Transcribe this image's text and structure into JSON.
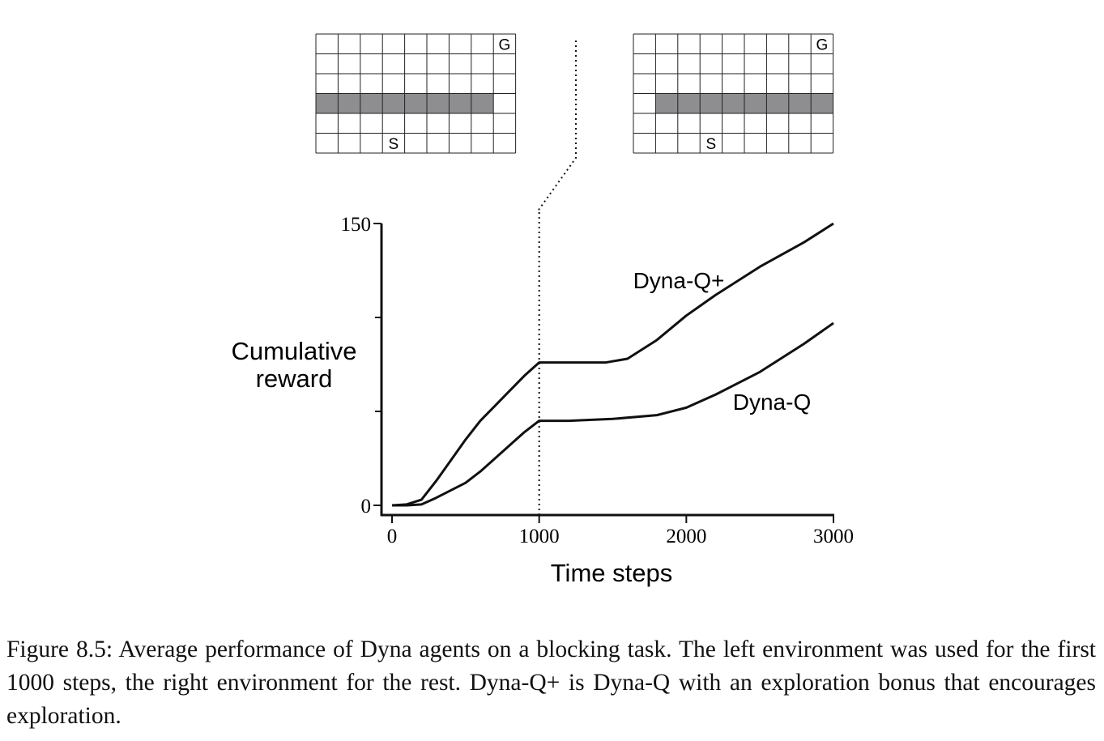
{
  "chart_data": {
    "type": "line",
    "x_label": "Time steps",
    "y_label": [
      "Cumulative",
      "reward"
    ],
    "xlim": [
      0,
      3000
    ],
    "ylim": [
      0,
      150
    ],
    "xticks": [
      0,
      1000,
      2000,
      3000
    ],
    "yticks": [
      0,
      150
    ],
    "minor_yticks": [
      50,
      100
    ],
    "change_step": 1000,
    "series": [
      {
        "name": "Dyna-Q+",
        "color": "#111111",
        "x": [
          0,
          100,
          200,
          300,
          400,
          500,
          600,
          700,
          800,
          900,
          1000,
          1200,
          1450,
          1600,
          1800,
          2000,
          2200,
          2500,
          2800,
          3000
        ],
        "values": [
          0,
          0.5,
          3,
          13,
          24,
          35,
          45,
          53,
          61,
          69,
          76,
          76,
          76,
          78,
          88,
          101,
          112,
          127,
          140,
          150
        ]
      },
      {
        "name": "Dyna-Q",
        "color": "#111111",
        "x": [
          0,
          100,
          200,
          300,
          400,
          500,
          600,
          700,
          800,
          900,
          1000,
          1200,
          1500,
          1800,
          2000,
          2200,
          2500,
          2800,
          3000
        ],
        "values": [
          0,
          0,
          0.5,
          4,
          8,
          12,
          18,
          25,
          32,
          39,
          45,
          45,
          46,
          48,
          52,
          59,
          71,
          86,
          97
        ]
      }
    ]
  },
  "environments": [
    {
      "goal_label": "G",
      "start_label": "S"
    },
    {
      "goal_label": "G",
      "start_label": "S"
    }
  ],
  "caption": "Figure 8.5: Average performance of Dyna agents on a blocking task. The left environment was used for the first 1000 steps, the right environment for the rest. Dyna-Q+ is Dyna-Q with an exploration bonus that encourages exploration."
}
